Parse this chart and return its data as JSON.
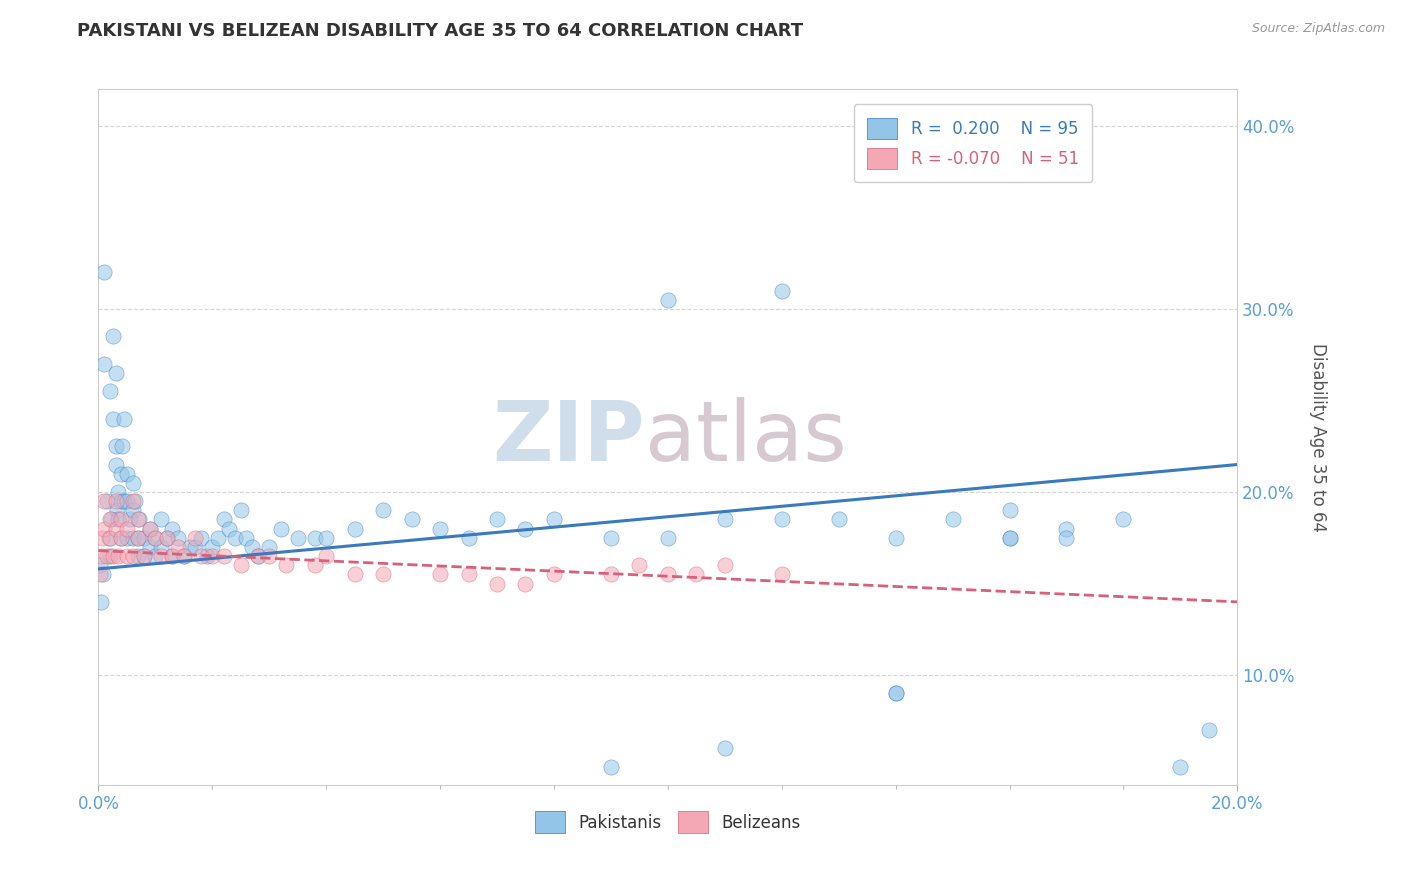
{
  "title": "PAKISTANI VS BELIZEAN DISABILITY AGE 35 TO 64 CORRELATION CHART",
  "source": "Source: ZipAtlas.com",
  "ylabel": "Disability Age 35 to 64",
  "xlim": [
    0.0,
    0.2
  ],
  "ylim": [
    0.04,
    0.42
  ],
  "yticks": [
    0.1,
    0.2,
    0.3,
    0.4
  ],
  "legend_label_blue": "Pakistanis",
  "legend_label_pink": "Belizeans",
  "blue_color": "#92c5e8",
  "pink_color": "#f4a8b5",
  "blue_line_color": "#3a7abf",
  "pink_line_color": "#d9607a",
  "watermark_zip": "ZIP",
  "watermark_atlas": "atlas",
  "pakistani_x": [
    0.0002,
    0.0005,
    0.0008,
    0.001,
    0.001,
    0.0015,
    0.0018,
    0.002,
    0.002,
    0.0022,
    0.0025,
    0.0025,
    0.003,
    0.003,
    0.003,
    0.0032,
    0.0035,
    0.0035,
    0.004,
    0.004,
    0.004,
    0.0042,
    0.0045,
    0.0045,
    0.005,
    0.005,
    0.005,
    0.0055,
    0.006,
    0.006,
    0.006,
    0.0065,
    0.007,
    0.007,
    0.0072,
    0.008,
    0.008,
    0.009,
    0.009,
    0.01,
    0.01,
    0.011,
    0.011,
    0.012,
    0.013,
    0.013,
    0.014,
    0.015,
    0.016,
    0.017,
    0.018,
    0.019,
    0.02,
    0.021,
    0.022,
    0.023,
    0.024,
    0.025,
    0.026,
    0.027,
    0.028,
    0.03,
    0.032,
    0.035,
    0.038,
    0.04,
    0.045,
    0.05,
    0.055,
    0.06,
    0.065,
    0.07,
    0.075,
    0.08,
    0.09,
    0.1,
    0.11,
    0.12,
    0.13,
    0.14,
    0.15,
    0.16,
    0.17,
    0.18,
    0.19,
    0.195,
    0.1,
    0.12,
    0.14,
    0.16,
    0.17,
    0.14,
    0.16,
    0.09,
    0.11
  ],
  "pakistani_y": [
    0.16,
    0.14,
    0.155,
    0.27,
    0.32,
    0.195,
    0.175,
    0.255,
    0.165,
    0.185,
    0.24,
    0.285,
    0.265,
    0.225,
    0.215,
    0.19,
    0.2,
    0.185,
    0.21,
    0.195,
    0.175,
    0.225,
    0.24,
    0.195,
    0.21,
    0.175,
    0.195,
    0.185,
    0.175,
    0.19,
    0.205,
    0.195,
    0.175,
    0.165,
    0.185,
    0.175,
    0.165,
    0.17,
    0.18,
    0.175,
    0.165,
    0.185,
    0.17,
    0.175,
    0.18,
    0.165,
    0.175,
    0.165,
    0.17,
    0.17,
    0.175,
    0.165,
    0.17,
    0.175,
    0.185,
    0.18,
    0.175,
    0.19,
    0.175,
    0.17,
    0.165,
    0.17,
    0.18,
    0.175,
    0.175,
    0.175,
    0.18,
    0.19,
    0.185,
    0.18,
    0.175,
    0.185,
    0.18,
    0.185,
    0.175,
    0.175,
    0.185,
    0.185,
    0.185,
    0.175,
    0.185,
    0.19,
    0.18,
    0.185,
    0.05,
    0.07,
    0.305,
    0.31,
    0.09,
    0.175,
    0.175,
    0.09,
    0.175,
    0.05,
    0.06
  ],
  "belizean_x": [
    0.0002,
    0.0004,
    0.0006,
    0.001,
    0.001,
    0.0015,
    0.002,
    0.002,
    0.0025,
    0.003,
    0.003,
    0.0035,
    0.004,
    0.004,
    0.005,
    0.005,
    0.006,
    0.006,
    0.007,
    0.007,
    0.008,
    0.009,
    0.01,
    0.011,
    0.012,
    0.013,
    0.014,
    0.015,
    0.017,
    0.018,
    0.02,
    0.022,
    0.025,
    0.028,
    0.03,
    0.033,
    0.038,
    0.04,
    0.045,
    0.05,
    0.06,
    0.065,
    0.07,
    0.075,
    0.08,
    0.09,
    0.1,
    0.11,
    0.12,
    0.105,
    0.095
  ],
  "belizean_y": [
    0.155,
    0.165,
    0.175,
    0.18,
    0.195,
    0.165,
    0.175,
    0.185,
    0.165,
    0.18,
    0.195,
    0.165,
    0.175,
    0.185,
    0.165,
    0.18,
    0.195,
    0.165,
    0.175,
    0.185,
    0.165,
    0.18,
    0.175,
    0.165,
    0.175,
    0.165,
    0.17,
    0.165,
    0.175,
    0.165,
    0.165,
    0.165,
    0.16,
    0.165,
    0.165,
    0.16,
    0.16,
    0.165,
    0.155,
    0.155,
    0.155,
    0.155,
    0.15,
    0.15,
    0.155,
    0.155,
    0.155,
    0.16,
    0.155,
    0.155,
    0.16
  ],
  "blue_trend_x": [
    0.0,
    0.2
  ],
  "blue_trend_y": [
    0.158,
    0.215
  ],
  "pink_trend_x": [
    0.0,
    0.2
  ],
  "pink_trend_y": [
    0.168,
    0.14
  ]
}
